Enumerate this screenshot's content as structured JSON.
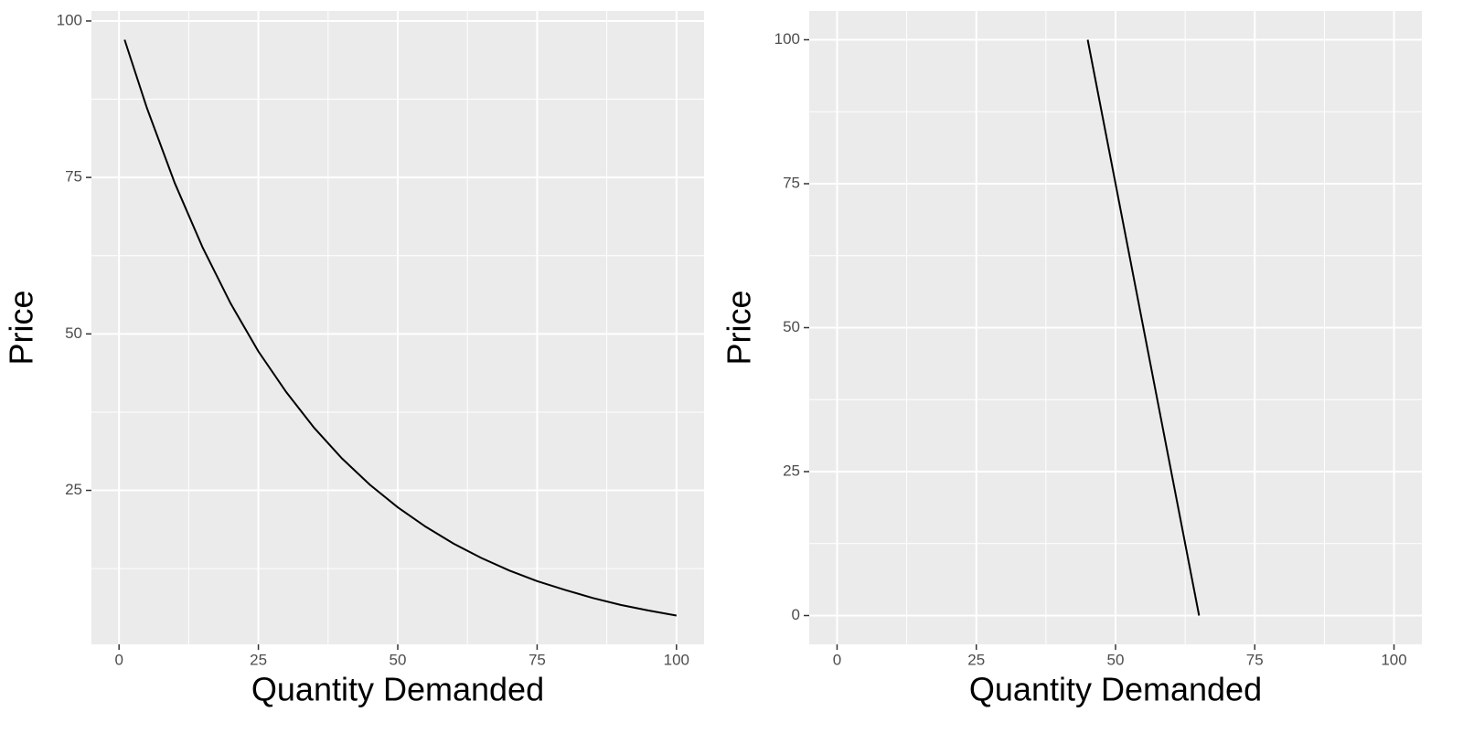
{
  "chart_data": [
    {
      "type": "line",
      "xlabel": "Quantity Demanded",
      "ylabel": "Price",
      "x": [
        1,
        5,
        10,
        15,
        20,
        25,
        30,
        35,
        40,
        45,
        50,
        55,
        60,
        65,
        70,
        75,
        80,
        85,
        90,
        95,
        100
      ],
      "series": [
        {
          "color": "#000000",
          "values": [
            97.0,
            86.1,
            74.1,
            63.8,
            54.9,
            47.2,
            40.7,
            35.0,
            30.1,
            25.9,
            22.3,
            19.2,
            16.5,
            14.2,
            12.2,
            10.5,
            9.1,
            7.8,
            6.7,
            5.8,
            5.0
          ]
        }
      ],
      "xlim": [
        -4.95,
        104.95
      ],
      "ylim": [
        0.4,
        101.6
      ],
      "xticks": [
        0,
        25,
        50,
        75,
        100
      ],
      "yticks": [
        25,
        50,
        75,
        100
      ],
      "grid": true
    },
    {
      "type": "line",
      "xlabel": "Quantity Demanded",
      "ylabel": "Price",
      "x": [
        45,
        65
      ],
      "series": [
        {
          "color": "#000000",
          "values": [
            100,
            0
          ]
        }
      ],
      "xlim": [
        -5,
        105
      ],
      "ylim": [
        -5,
        105
      ],
      "xticks": [
        0,
        25,
        50,
        75,
        100
      ],
      "yticks": [
        0,
        25,
        50,
        75,
        100
      ],
      "grid": true
    }
  ]
}
